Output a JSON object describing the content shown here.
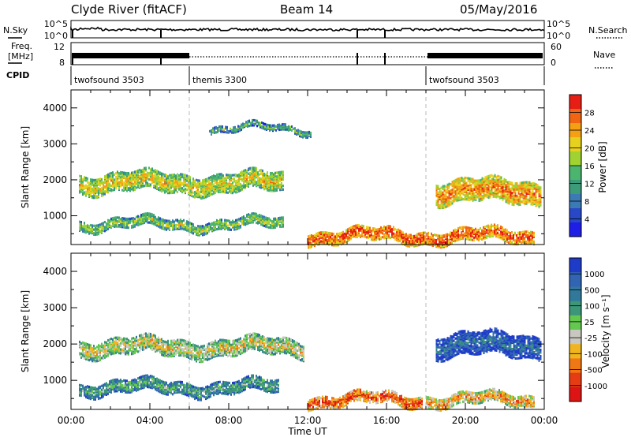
{
  "header": {
    "station": "Clyde River (fitACF)",
    "beam": "Beam 14",
    "date": "05/May/2016"
  },
  "top_panels": {
    "nsky_label": "N.Sky",
    "nsearch_label": "N.Search",
    "noise_ticks": [
      "10^5",
      "10^0"
    ],
    "freq_label_1": "Freq.",
    "freq_label_2": "[MHz]",
    "freq_ticks": [
      "12",
      "8"
    ],
    "nave_label": "Nave",
    "nave_ticks": [
      "60",
      "0"
    ],
    "cpid_label": "CPID",
    "cpid_segments": [
      {
        "name": "twofsound 3503",
        "start_hour": 0,
        "end_hour": 6
      },
      {
        "name": "themis 3300",
        "start_hour": 6,
        "end_hour": 18
      },
      {
        "name": "twofsound 3503",
        "start_hour": 18,
        "end_hour": 24
      }
    ]
  },
  "chart_data": [
    {
      "type": "heatmap",
      "panel": "power",
      "ylabel": "Slant Range [km]",
      "xlim_hours": [
        0,
        24
      ],
      "ylim_km": [
        200,
        4500
      ],
      "yticks": [
        "1000",
        "2000",
        "3000",
        "4000"
      ],
      "colorbar": {
        "label": "Power [dB]",
        "ticks": [
          "4",
          "8",
          "12",
          "16",
          "20",
          "24",
          "28"
        ],
        "colors": [
          "#1e1ee6",
          "#2848c8",
          "#3c7ab4",
          "#3c9b78",
          "#4bb46e",
          "#a0d232",
          "#e6d21e",
          "#f5a014",
          "#f06414",
          "#e61e14"
        ]
      },
      "bands": [
        {
          "from_hour": 0.4,
          "to_hour": 10.8,
          "range_center_km": 1950,
          "range_width_km": 500,
          "level": 0.55
        },
        {
          "from_hour": 0.4,
          "to_hour": 10.8,
          "range_center_km": 800,
          "range_width_km": 250,
          "level": 0.45
        },
        {
          "from_hour": 7.0,
          "to_hour": 12.2,
          "range_center_km": 3450,
          "range_width_km": 150,
          "level": 0.35
        },
        {
          "from_hour": 12.0,
          "to_hour": 23.5,
          "range_center_km": 480,
          "range_width_km": 350,
          "level": 0.8
        },
        {
          "from_hour": 18.5,
          "to_hour": 23.8,
          "range_center_km": 1700,
          "range_width_km": 600,
          "level": 0.7
        }
      ]
    },
    {
      "type": "heatmap",
      "panel": "velocity",
      "xlabel": "Time UT",
      "ylabel": "Slant Range [km]",
      "xticks": [
        "00:00",
        "04:00",
        "08:00",
        "12:00",
        "16:00",
        "20:00",
        "00:00"
      ],
      "xlim_hours": [
        0,
        24
      ],
      "ylim_km": [
        200,
        4500
      ],
      "yticks": [
        "1000",
        "2000",
        "3000",
        "4000"
      ],
      "colorbar": {
        "label": "Velocity [m s⁻¹]",
        "ticks": [
          "1000",
          "500",
          "100",
          "25",
          "-25",
          "-100",
          "-500",
          "-1000"
        ],
        "colors": [
          "#1e3cc8",
          "#3264b4",
          "#32789b",
          "#3c9678",
          "#64c850",
          "#c8c8c0",
          "#f0b41e",
          "#f07814",
          "#e63c14",
          "#dc1414"
        ]
      },
      "bands": [
        {
          "from_hour": 0.4,
          "to_hour": 11.8,
          "range_center_km": 1950,
          "range_width_km": 450,
          "level": 0.5
        },
        {
          "from_hour": 0.4,
          "to_hour": 10.5,
          "range_center_km": 850,
          "range_width_km": 350,
          "level": 0.3
        },
        {
          "from_hour": 12.0,
          "to_hour": 17.8,
          "range_center_km": 500,
          "range_width_km": 300,
          "level": 0.75
        },
        {
          "from_hour": 18.0,
          "to_hour": 23.5,
          "range_center_km": 500,
          "range_width_km": 300,
          "level": 0.62
        },
        {
          "from_hour": 18.5,
          "to_hour": 23.8,
          "range_center_km": 2000,
          "range_width_km": 600,
          "level": 0.12
        }
      ]
    }
  ]
}
